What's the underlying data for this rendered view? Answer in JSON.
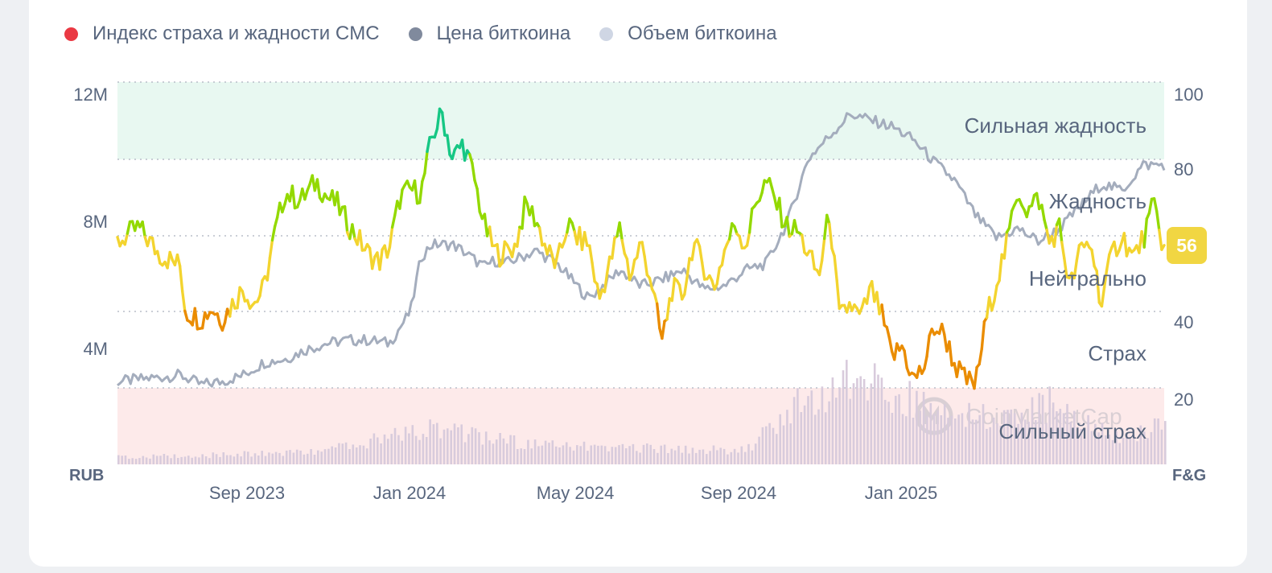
{
  "legend": [
    {
      "label": "Индекс страха и жадности CMC",
      "color": "#ea3943"
    },
    {
      "label": "Цена биткоина",
      "color": "#808a9d"
    },
    {
      "label": "Объем биткоина",
      "color": "#cfd6e4"
    }
  ],
  "axes": {
    "left_unit": "RUB",
    "right_unit": "F&G",
    "left_ticks": [
      "12M",
      "8M",
      "4M"
    ],
    "right_ticks": [
      "100",
      "80",
      "40",
      "20"
    ],
    "x_ticks": [
      "Sep 2023",
      "Jan 2024",
      "May 2024",
      "Sep 2024",
      "Jan 2025"
    ]
  },
  "zones": [
    "Сильная жадность",
    "Жадность",
    "Нейтрально",
    "Страх",
    "Сильный страх"
  ],
  "current_value": "56",
  "watermark": "CoinMarketCap",
  "chart_data": {
    "type": "line",
    "x_range": [
      "2023-06",
      "2025-07"
    ],
    "ylim_price_rub": [
      0,
      12000000
    ],
    "ylim_fg": [
      0,
      100
    ],
    "series": [
      {
        "name": "Индекс страха и жадности CMC",
        "axis": "right",
        "x": [
          0,
          0.02,
          0.04,
          0.06,
          0.065,
          0.08,
          0.09,
          0.1,
          0.12,
          0.13,
          0.14,
          0.15,
          0.16,
          0.175,
          0.19,
          0.2,
          0.21,
          0.22,
          0.24,
          0.25,
          0.26,
          0.27,
          0.28,
          0.29,
          0.3,
          0.31,
          0.32,
          0.33,
          0.34,
          0.35,
          0.36,
          0.365,
          0.38,
          0.39,
          0.4,
          0.41,
          0.42,
          0.43,
          0.44,
          0.45,
          0.46,
          0.47,
          0.48,
          0.49,
          0.5,
          0.51,
          0.52,
          0.53,
          0.54,
          0.55,
          0.56,
          0.57,
          0.58,
          0.59,
          0.6,
          0.61,
          0.62,
          0.63,
          0.64,
          0.65,
          0.66,
          0.67,
          0.68,
          0.69,
          0.7,
          0.71,
          0.72,
          0.73,
          0.74,
          0.75,
          0.76,
          0.77,
          0.78,
          0.79,
          0.8,
          0.81,
          0.82,
          0.83,
          0.84,
          0.85,
          0.86,
          0.87,
          0.88,
          0.89,
          0.9,
          0.91,
          0.92,
          0.93,
          0.94,
          0.95,
          0.96,
          0.97,
          0.98,
          0.99,
          1.0
        ],
        "values": [
          58,
          62,
          55,
          52,
          40,
          38,
          41,
          38,
          46,
          42,
          46,
          60,
          71,
          69,
          74,
          70,
          68,
          63,
          55,
          53,
          57,
          70,
          72,
          71,
          85,
          92,
          80,
          84,
          76,
          63,
          56,
          55,
          57,
          68,
          64,
          56,
          52,
          63,
          59,
          58,
          43,
          52,
          62,
          49,
          58,
          48,
          32,
          46,
          44,
          58,
          52,
          46,
          56,
          63,
          57,
          69,
          74,
          68,
          62,
          61,
          55,
          49,
          66,
          38,
          42,
          38,
          46,
          39,
          28,
          31,
          22,
          25,
          36,
          34,
          26,
          22,
          21,
          38,
          48,
          58,
          72,
          66,
          70,
          58,
          62,
          46,
          56,
          58,
          42,
          55,
          60,
          54,
          59,
          68,
          56
        ],
        "current": 56
      },
      {
        "name": "Цена биткоина",
        "axis": "left",
        "x": [
          0,
          0.03,
          0.06,
          0.08,
          0.1,
          0.12,
          0.14,
          0.16,
          0.18,
          0.2,
          0.22,
          0.24,
          0.26,
          0.28,
          0.29,
          0.3,
          0.32,
          0.33,
          0.35,
          0.36,
          0.37,
          0.4,
          0.42,
          0.45,
          0.48,
          0.5,
          0.52,
          0.54,
          0.56,
          0.58,
          0.6,
          0.62,
          0.64,
          0.66,
          0.68,
          0.7,
          0.72,
          0.74,
          0.76,
          0.78,
          0.8,
          0.82,
          0.84,
          0.86,
          0.88,
          0.9,
          0.92,
          0.94,
          0.96,
          0.98,
          1.0
        ],
        "values": [
          2.6,
          2.7,
          2.8,
          2.5,
          2.6,
          2.8,
          3.2,
          3.3,
          3.6,
          3.8,
          3.9,
          3.9,
          3.8,
          4.8,
          6.5,
          6.9,
          6.9,
          6.7,
          6.2,
          6.4,
          6.3,
          6.7,
          6.3,
          5.2,
          6.1,
          5.6,
          5.8,
          6.1,
          5.5,
          5.6,
          6.1,
          6.3,
          7.6,
          9.6,
          10.3,
          11.0,
          10.8,
          10.6,
          10.2,
          9.5,
          8.9,
          7.8,
          7.1,
          7.4,
          7.0,
          7.4,
          8.1,
          8.8,
          8.6,
          9.4,
          9.4
        ],
        "unit": "M RUB"
      },
      {
        "name": "Объем биткоина",
        "axis": "left",
        "x": [
          0,
          0.1,
          0.2,
          0.3,
          0.35,
          0.4,
          0.5,
          0.6,
          0.65,
          0.7,
          0.75,
          0.8,
          0.85,
          0.9,
          0.95,
          1.0
        ],
        "values": [
          0.15,
          0.2,
          0.3,
          0.8,
          0.6,
          0.4,
          0.35,
          0.3,
          1.3,
          1.8,
          1.5,
          1.2,
          0.9,
          1.4,
          0.6,
          0.8
        ],
        "unit": "relative"
      }
    ]
  }
}
